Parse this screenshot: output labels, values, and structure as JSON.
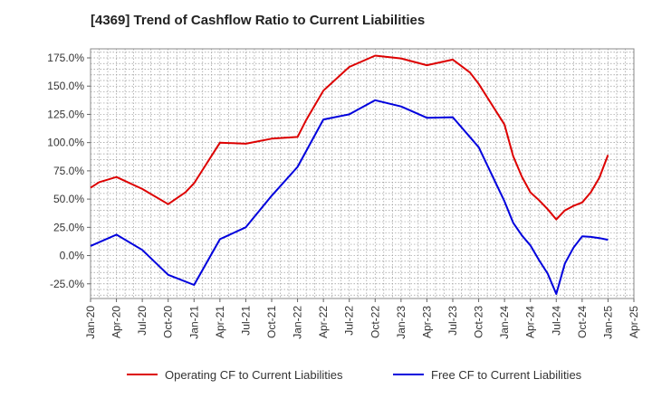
{
  "chart_data": {
    "type": "line",
    "title": "[4369]  Trend of Cashflow Ratio to Current Liabilities",
    "xlabel": "",
    "ylabel": "",
    "x_ticks": [
      "Jan-20",
      "Apr-20",
      "Jul-20",
      "Oct-20",
      "Jan-21",
      "Apr-21",
      "Jul-21",
      "Oct-21",
      "Jan-22",
      "Apr-22",
      "Jul-22",
      "Oct-22",
      "Jan-23",
      "Apr-23",
      "Jul-23",
      "Oct-23",
      "Jan-24",
      "Apr-24",
      "Jul-24",
      "Oct-24",
      "Jan-25",
      "Apr-25"
    ],
    "y_ticks": [
      "-25.0%",
      "0.0%",
      "25.0%",
      "50.0%",
      "75.0%",
      "100.0%",
      "125.0%",
      "150.0%",
      "175.0%"
    ],
    "y_tick_values": [
      -25,
      0,
      25,
      50,
      75,
      100,
      125,
      150,
      175
    ],
    "ylim": [
      -38,
      183
    ],
    "grid": true,
    "legend_position": "bottom",
    "series": [
      {
        "name": "Operating CF to Current Liabilities",
        "color": "#dd0000",
        "points": [
          [
            "Jan-20",
            60
          ],
          [
            "Feb-20",
            65
          ],
          [
            "Apr-20",
            69.5
          ],
          [
            "Jul-20",
            59
          ],
          [
            "Oct-20",
            45.5
          ],
          [
            "Dec-20",
            56
          ],
          [
            "Jan-21",
            64
          ],
          [
            "Apr-21",
            100
          ],
          [
            "Jul-21",
            99
          ],
          [
            "Oct-21",
            103.5
          ],
          [
            "Jan-22",
            105
          ],
          [
            "Feb-22",
            120
          ],
          [
            "Apr-22",
            146
          ],
          [
            "Jul-22",
            167
          ],
          [
            "Oct-22",
            177
          ],
          [
            "Jan-23",
            174.5
          ],
          [
            "Apr-23",
            168.5
          ],
          [
            "Jul-23",
            173.5
          ],
          [
            "Sep-23",
            162
          ],
          [
            "Oct-23",
            152
          ],
          [
            "Jan-24",
            116
          ],
          [
            "Feb-24",
            88
          ],
          [
            "Mar-24",
            70
          ],
          [
            "Apr-24",
            56
          ],
          [
            "May-24",
            49
          ],
          [
            "Jun-24",
            41
          ],
          [
            "Jul-24",
            32
          ],
          [
            "Aug-24",
            40
          ],
          [
            "Sep-24",
            44
          ],
          [
            "Oct-24",
            47
          ],
          [
            "Nov-24",
            56
          ],
          [
            "Dec-24",
            69
          ],
          [
            "Jan-25",
            89
          ]
        ]
      },
      {
        "name": "Free CF to Current Liabilities",
        "color": "#0000dd",
        "points": [
          [
            "Jan-20",
            8.5
          ],
          [
            "Apr-20",
            18.5
          ],
          [
            "Jul-20",
            5
          ],
          [
            "Oct-20",
            -17
          ],
          [
            "Jan-21",
            -26
          ],
          [
            "Apr-21",
            14.5
          ],
          [
            "Jul-21",
            25
          ],
          [
            "Oct-21",
            53
          ],
          [
            "Jan-22",
            78.5
          ],
          [
            "Apr-22",
            120.5
          ],
          [
            "Jul-22",
            125
          ],
          [
            "Oct-22",
            137.5
          ],
          [
            "Jan-23",
            132
          ],
          [
            "Apr-23",
            122
          ],
          [
            "Jul-23",
            122.5
          ],
          [
            "Oct-23",
            96
          ],
          [
            "Jan-24",
            48
          ],
          [
            "Feb-24",
            29
          ],
          [
            "Mar-24",
            18
          ],
          [
            "Apr-24",
            9
          ],
          [
            "May-24",
            -4
          ],
          [
            "Jun-24",
            -16
          ],
          [
            "Jul-24",
            -34
          ],
          [
            "Aug-24",
            -7
          ],
          [
            "Sep-24",
            7
          ],
          [
            "Oct-24",
            17
          ],
          [
            "Nov-24",
            16.5
          ],
          [
            "Dec-24",
            15.5
          ],
          [
            "Jan-25",
            14
          ]
        ]
      }
    ]
  }
}
